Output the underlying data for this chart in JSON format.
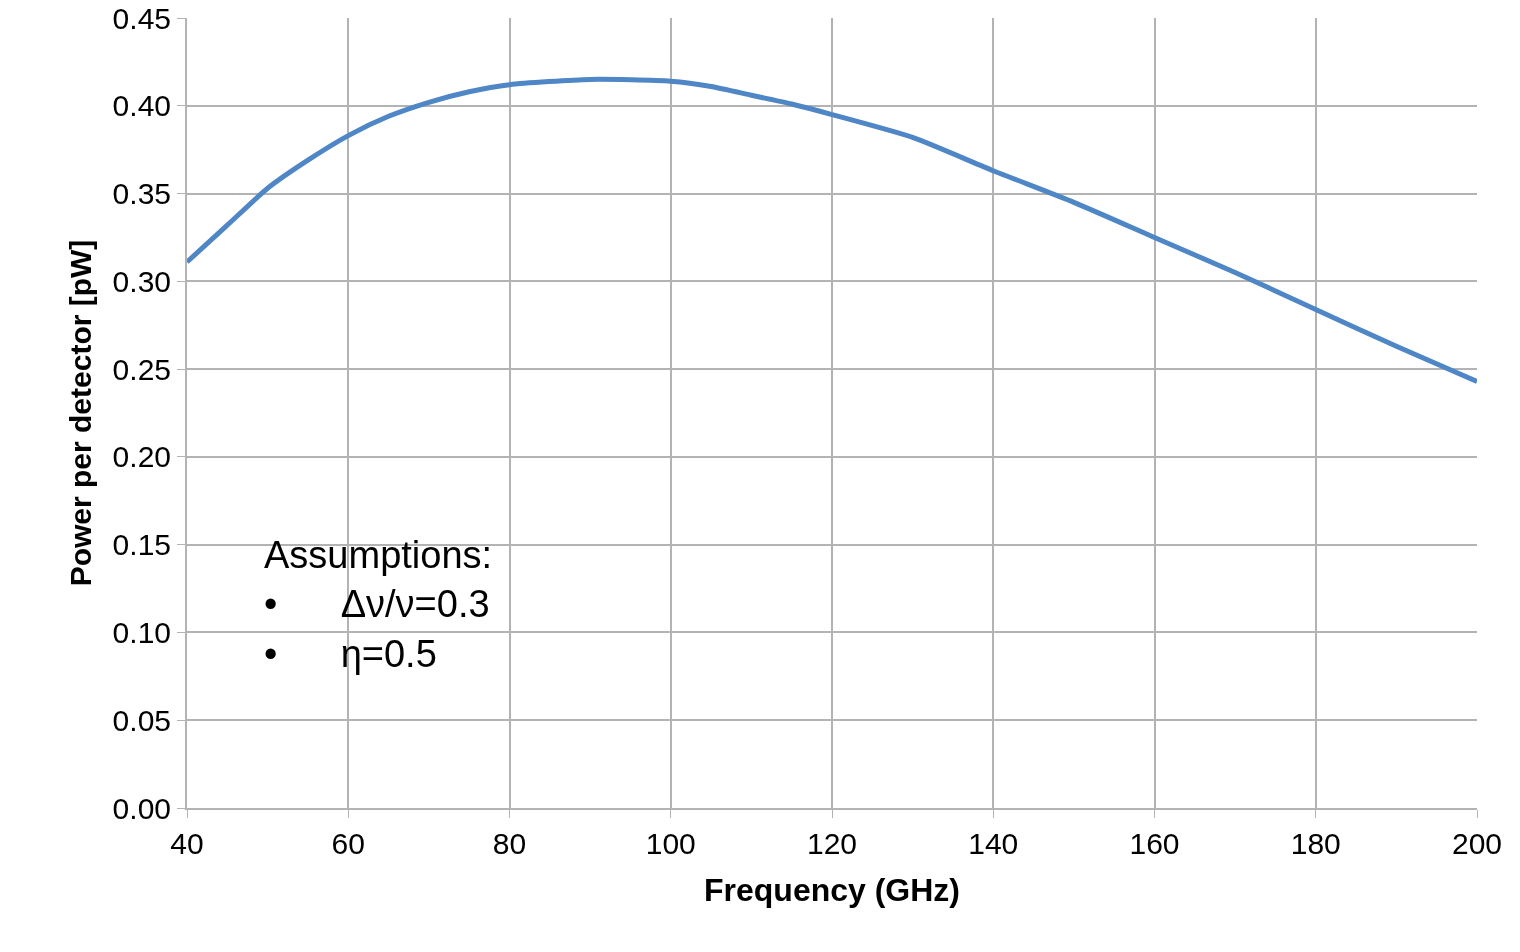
{
  "chart_data": {
    "type": "line",
    "xlabel": "Frequency (GHz)",
    "ylabel": "Power per detector [pW]",
    "x": [
      40,
      45,
      50,
      55,
      60,
      65,
      70,
      75,
      80,
      90,
      100,
      105,
      110,
      115,
      120,
      130,
      140,
      150,
      160,
      170,
      180,
      190,
      200
    ],
    "series": [
      {
        "color": "#4f86c6",
        "values": [
          0.311,
          0.332,
          0.353,
          0.369,
          0.383,
          0.394,
          0.402,
          0.408,
          0.412,
          0.415,
          0.414,
          0.411,
          0.406,
          0.401,
          0.395,
          0.382,
          0.363,
          0.345,
          0.325,
          0.305,
          0.284,
          0.263,
          0.243
        ]
      }
    ],
    "xlim": [
      40,
      200
    ],
    "xticks": [
      40,
      60,
      80,
      100,
      120,
      140,
      160,
      180,
      200
    ],
    "ylim": [
      0,
      0.45
    ],
    "yticks": [
      {
        "value": 0,
        "label": "0.00"
      },
      {
        "value": 0.05,
        "label": "0.05"
      },
      {
        "value": 0.1,
        "label": "0.10"
      },
      {
        "value": 0.15,
        "label": "0.15"
      },
      {
        "value": 0.2,
        "label": "0.20"
      },
      {
        "value": 0.25,
        "label": "0.25"
      },
      {
        "value": 0.3,
        "label": "0.30"
      },
      {
        "value": 0.35,
        "label": "0.35"
      },
      {
        "value": 0.4,
        "label": "0.40"
      },
      {
        "value": 0.45,
        "label": "0.45"
      }
    ],
    "annotations": [
      "Assumptions:\n•      Δν/ν=0.3\n•      η=0.5"
    ],
    "grid": true,
    "marker": "none",
    "line_style": "solid"
  }
}
